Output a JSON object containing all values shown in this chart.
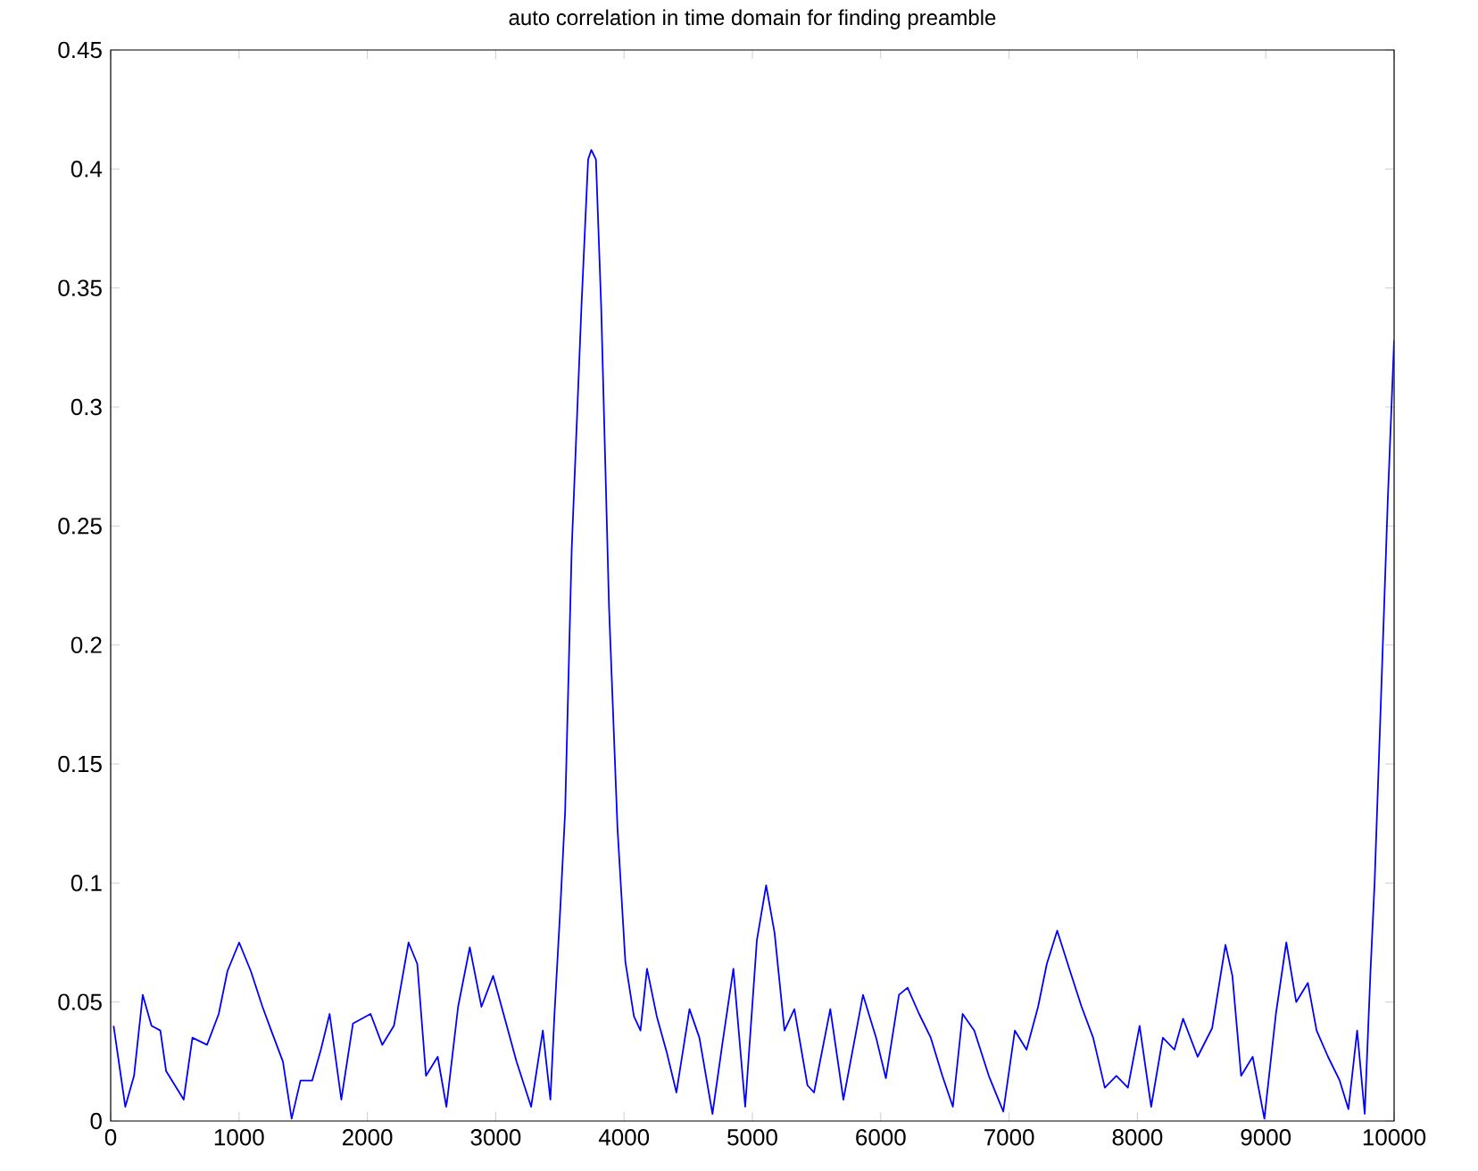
{
  "chart_data": {
    "type": "line",
    "title": "auto correlation in time domain for finding preamble",
    "xlim": [
      0,
      10000
    ],
    "ylim": [
      0,
      0.45
    ],
    "xticks": [
      0,
      1000,
      2000,
      3000,
      4000,
      5000,
      6000,
      7000,
      8000,
      9000,
      10000
    ],
    "yticks": [
      0,
      0.05,
      0.1,
      0.15,
      0.2,
      0.25,
      0.3,
      0.35,
      0.4,
      0.45
    ],
    "series": [
      {
        "color": "#0000ff",
        "x": [
          23,
          114,
          182,
          250,
          318,
          387,
          432,
          569,
          637,
          751,
          842,
          910,
          1001,
          1092,
          1183,
          1251,
          1342,
          1410,
          1479,
          1570,
          1638,
          1706,
          1797,
          1888,
          2025,
          2116,
          2207,
          2321,
          2389,
          2457,
          2548,
          2616,
          2707,
          2798,
          2889,
          2980,
          3071,
          3162,
          3276,
          3367,
          3426,
          3458,
          3503,
          3541,
          3592,
          3668,
          3720,
          3745,
          3781,
          3822,
          3883,
          3949,
          4010,
          4077,
          4128,
          4179,
          4255,
          4332,
          4408,
          4510,
          4587,
          4689,
          4765,
          4852,
          4944,
          5035,
          5107,
          5173,
          5250,
          5327,
          5429,
          5480,
          5607,
          5709,
          5862,
          5964,
          6040,
          6142,
          6209,
          6299,
          6390,
          6480,
          6562,
          6638,
          6729,
          6842,
          6955,
          7045,
          7136,
          7226,
          7294,
          7375,
          7475,
          7565,
          7655,
          7746,
          7836,
          7926,
          8017,
          8107,
          8198,
          8288,
          8356,
          8469,
          8582,
          8686,
          8740,
          8808,
          8898,
          8989,
          9079,
          9160,
          9237,
          9328,
          9396,
          9485,
          9576,
          9644,
          9712,
          9771,
          9816,
          9848,
          9893,
          9950,
          10000
        ],
        "values": [
          0.04,
          0.006,
          0.019,
          0.053,
          0.04,
          0.038,
          0.021,
          0.009,
          0.035,
          0.032,
          0.045,
          0.063,
          0.075,
          0.063,
          0.048,
          0.038,
          0.025,
          0.001,
          0.017,
          0.017,
          0.03,
          0.045,
          0.009,
          0.041,
          0.045,
          0.032,
          0.04,
          0.075,
          0.066,
          0.019,
          0.027,
          0.006,
          0.048,
          0.073,
          0.048,
          0.061,
          0.043,
          0.025,
          0.006,
          0.038,
          0.009,
          0.045,
          0.089,
          0.13,
          0.24,
          0.342,
          0.404,
          0.408,
          0.404,
          0.342,
          0.216,
          0.123,
          0.067,
          0.044,
          0.038,
          0.064,
          0.044,
          0.029,
          0.012,
          0.047,
          0.035,
          0.003,
          0.032,
          0.064,
          0.006,
          0.076,
          0.099,
          0.079,
          0.038,
          0.047,
          0.015,
          0.012,
          0.047,
          0.009,
          0.053,
          0.035,
          0.018,
          0.053,
          0.056,
          0.045,
          0.035,
          0.019,
          0.006,
          0.045,
          0.038,
          0.019,
          0.004,
          0.038,
          0.03,
          0.048,
          0.066,
          0.08,
          0.063,
          0.048,
          0.035,
          0.014,
          0.019,
          0.014,
          0.04,
          0.006,
          0.035,
          0.03,
          0.043,
          0.027,
          0.039,
          0.074,
          0.061,
          0.019,
          0.027,
          0.001,
          0.045,
          0.075,
          0.05,
          0.058,
          0.038,
          0.027,
          0.017,
          0.005,
          0.038,
          0.003,
          0.063,
          0.1,
          0.17,
          0.26,
          0.328
        ]
      }
    ]
  }
}
